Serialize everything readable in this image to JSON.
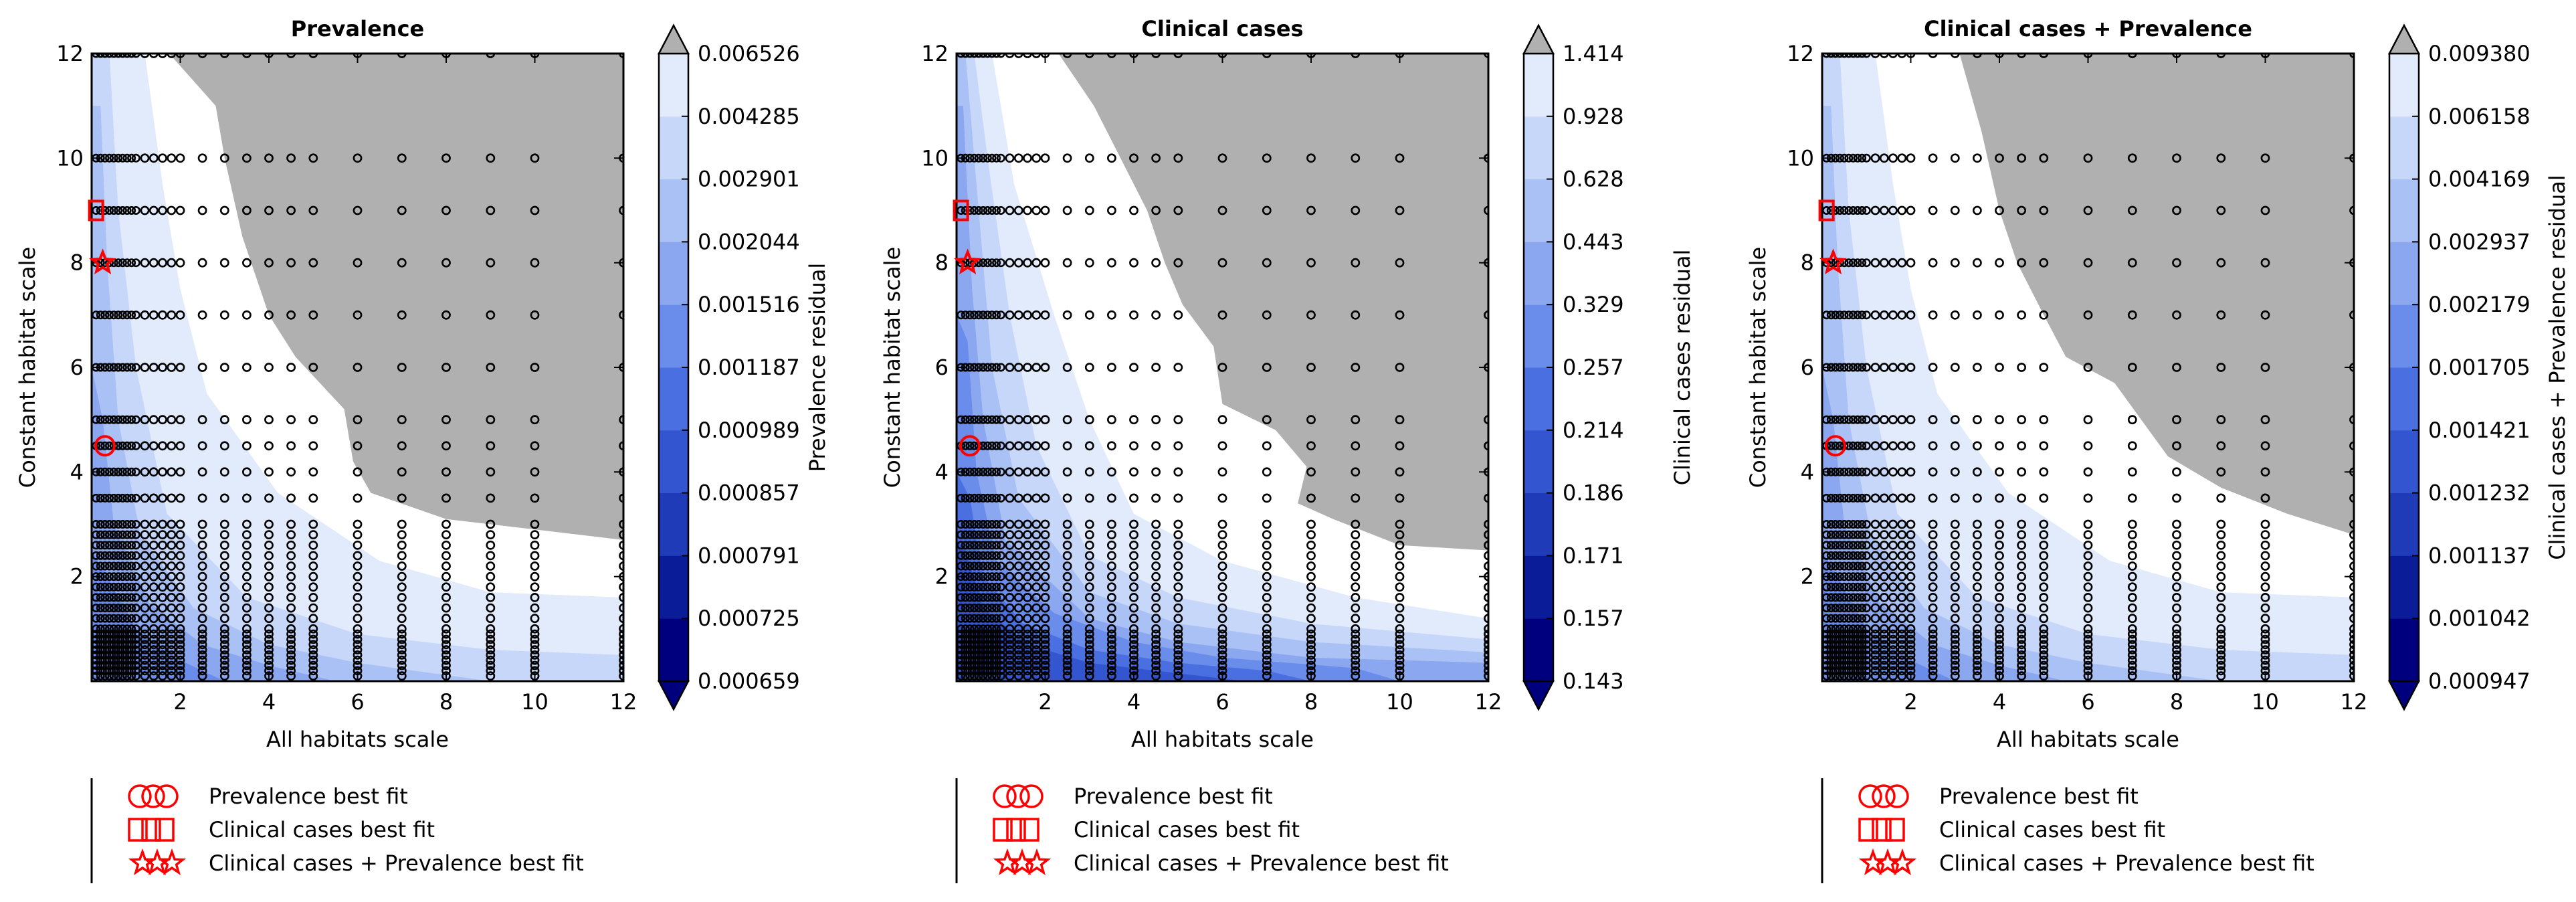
{
  "figure": {
    "legend_entries": [
      "Prevalence best fit",
      "Clinical cases best fit",
      "Clinical cases + Prevalence best fit"
    ],
    "marker_color": "#ff0000",
    "grayout_color": "#b0b0b0"
  },
  "chart_data": [
    {
      "type": "heatmap",
      "title": "Prevalence",
      "xlabel": "All habitats scale",
      "ylabel": "Constant habitat scale",
      "xlim": [
        0,
        12
      ],
      "ylim": [
        0,
        12
      ],
      "xticks": [
        2,
        4,
        6,
        8,
        10,
        12
      ],
      "yticks": [
        2,
        4,
        6,
        8,
        10,
        12
      ],
      "colorbar_label": "Prevalence residual",
      "colorbar_levels": [
        "0.000659",
        "0.000725",
        "0.000791",
        "0.000857",
        "0.000989",
        "0.001187",
        "0.001516",
        "0.002044",
        "0.002901",
        "0.004285",
        "0.006526"
      ],
      "colorbar_colors": [
        "#00007f",
        "#0b1c99",
        "#1f3bb8",
        "#3356d0",
        "#4a6fe0",
        "#6a8cea",
        "#8aa7f0",
        "#a9c1f5",
        "#c6d7f9",
        "#e2ebfc",
        "#ffffff"
      ],
      "best_fit": {
        "prevalence": [
          0.3,
          4.5
        ],
        "clinical_cases": [
          0.1,
          9.0
        ],
        "combined": [
          0.25,
          8.0
        ]
      }
    },
    {
      "type": "heatmap",
      "title": "Clinical cases",
      "xlabel": "All habitats scale",
      "ylabel": "Constant habitat scale",
      "xlim": [
        0,
        12
      ],
      "ylim": [
        0,
        12
      ],
      "xticks": [
        2,
        4,
        6,
        8,
        10,
        12
      ],
      "yticks": [
        2,
        4,
        6,
        8,
        10,
        12
      ],
      "colorbar_label": "Clinical cases residual",
      "colorbar_levels": [
        "0.143",
        "0.157",
        "0.171",
        "0.186",
        "0.214",
        "0.257",
        "0.329",
        "0.443",
        "0.628",
        "0.928",
        "1.414"
      ],
      "colorbar_colors": [
        "#00007f",
        "#0b1c99",
        "#1f3bb8",
        "#3356d0",
        "#4a6fe0",
        "#6a8cea",
        "#8aa7f0",
        "#a9c1f5",
        "#c6d7f9",
        "#e2ebfc",
        "#ffffff"
      ],
      "best_fit": {
        "prevalence": [
          0.3,
          4.5
        ],
        "clinical_cases": [
          0.1,
          9.0
        ],
        "combined": [
          0.25,
          8.0
        ]
      }
    },
    {
      "type": "heatmap",
      "title": "Clinical cases + Prevalence",
      "xlabel": "All habitats scale",
      "ylabel": "Constant habitat scale",
      "xlim": [
        0,
        12
      ],
      "ylim": [
        0,
        12
      ],
      "xticks": [
        2,
        4,
        6,
        8,
        10,
        12
      ],
      "yticks": [
        2,
        4,
        6,
        8,
        10,
        12
      ],
      "colorbar_label": "Clinical cases + Prevalence residual",
      "colorbar_levels": [
        "0.000947",
        "0.001042",
        "0.001137",
        "0.001232",
        "0.001421",
        "0.001705",
        "0.002179",
        "0.002937",
        "0.004169",
        "0.006158",
        "0.009380"
      ],
      "colorbar_colors": [
        "#00007f",
        "#0b1c99",
        "#1f3bb8",
        "#3356d0",
        "#4a6fe0",
        "#6a8cea",
        "#8aa7f0",
        "#a9c1f5",
        "#c6d7f9",
        "#e2ebfc",
        "#ffffff"
      ],
      "best_fit": {
        "prevalence": [
          0.3,
          4.5
        ],
        "clinical_cases": [
          0.1,
          9.0
        ],
        "combined": [
          0.25,
          8.0
        ]
      }
    }
  ]
}
